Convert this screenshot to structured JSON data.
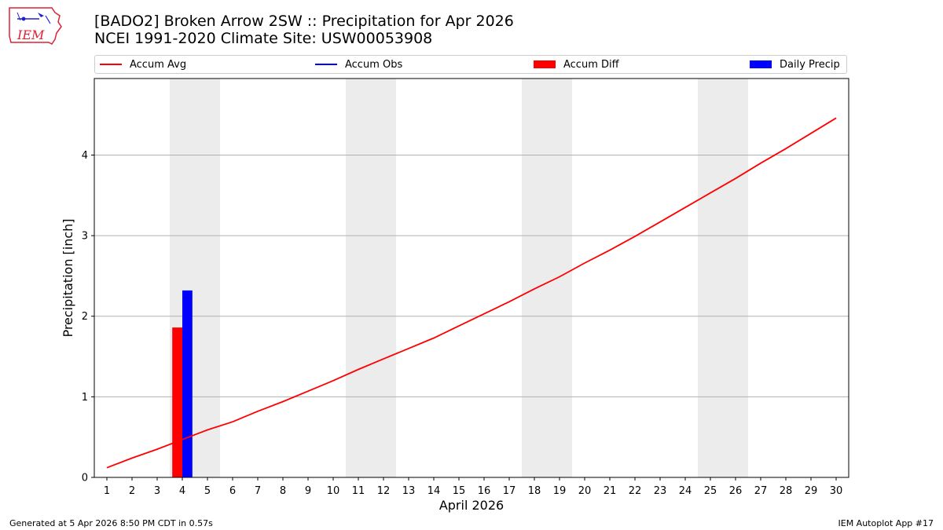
{
  "header": {
    "title_line1": "[BADO2] Broken Arrow 2SW :: Precipitation for Apr 2026",
    "title_line2": "NCEI 1991-2020 Climate Site: USW00053908",
    "logo_text": "IEM"
  },
  "footer": {
    "left": "Generated at 5 Apr 2026 8:50 PM CDT in 0.57s",
    "right": "IEM Autoplot App #17"
  },
  "colors": {
    "accum_avg": "#ff0000",
    "accum_obs": "#0000ff",
    "accum_diff": "#ff0000",
    "daily_precip": "#0000ff",
    "weekend_shade": "#ececec",
    "grid": "#b0b0b0"
  },
  "chart_data": {
    "type": "line",
    "xlabel": "April 2026",
    "ylabel": "Precipitation [inch]",
    "xlim": [
      0.5,
      30.5
    ],
    "ylim": [
      0,
      4.95
    ],
    "yticks": [
      0,
      1,
      2,
      3,
      4
    ],
    "xticks": [
      1,
      2,
      3,
      4,
      5,
      6,
      7,
      8,
      9,
      10,
      11,
      12,
      13,
      14,
      15,
      16,
      17,
      18,
      19,
      20,
      21,
      22,
      23,
      24,
      25,
      26,
      27,
      28,
      29,
      30
    ],
    "grid": "horizontal",
    "legend_position": "top",
    "weekend_shading": [
      [
        4,
        5
      ],
      [
        11,
        12
      ],
      [
        18,
        19
      ],
      [
        25,
        26
      ]
    ],
    "legend": [
      {
        "name": "Accum Avg",
        "kind": "line",
        "color": "#ff0000"
      },
      {
        "name": "Accum Obs",
        "kind": "line",
        "color": "#0000ff"
      },
      {
        "name": "Accum Diff",
        "kind": "bar",
        "color": "#ff0000"
      },
      {
        "name": "Daily Precip",
        "kind": "bar",
        "color": "#0000ff"
      }
    ],
    "series": [
      {
        "name": "Accum Avg",
        "kind": "line",
        "x": [
          1,
          2,
          3,
          4,
          5,
          6,
          7,
          8,
          9,
          10,
          11,
          12,
          13,
          14,
          15,
          16,
          17,
          18,
          19,
          20,
          21,
          22,
          23,
          24,
          25,
          26,
          27,
          28,
          29,
          30
        ],
        "values": [
          0.12,
          0.24,
          0.35,
          0.47,
          0.59,
          0.69,
          0.82,
          0.94,
          1.07,
          1.2,
          1.34,
          1.47,
          1.6,
          1.73,
          1.88,
          2.03,
          2.18,
          2.34,
          2.49,
          2.66,
          2.82,
          2.99,
          3.17,
          3.35,
          3.53,
          3.71,
          3.9,
          4.08,
          4.27,
          4.46
        ]
      },
      {
        "name": "Accum Obs",
        "kind": "line",
        "x": [],
        "values": []
      },
      {
        "name": "Accum Diff",
        "kind": "bar",
        "x": [
          4
        ],
        "values": [
          1.86
        ]
      },
      {
        "name": "Daily Precip",
        "kind": "bar",
        "x": [
          4
        ],
        "values": [
          2.32
        ]
      }
    ]
  }
}
